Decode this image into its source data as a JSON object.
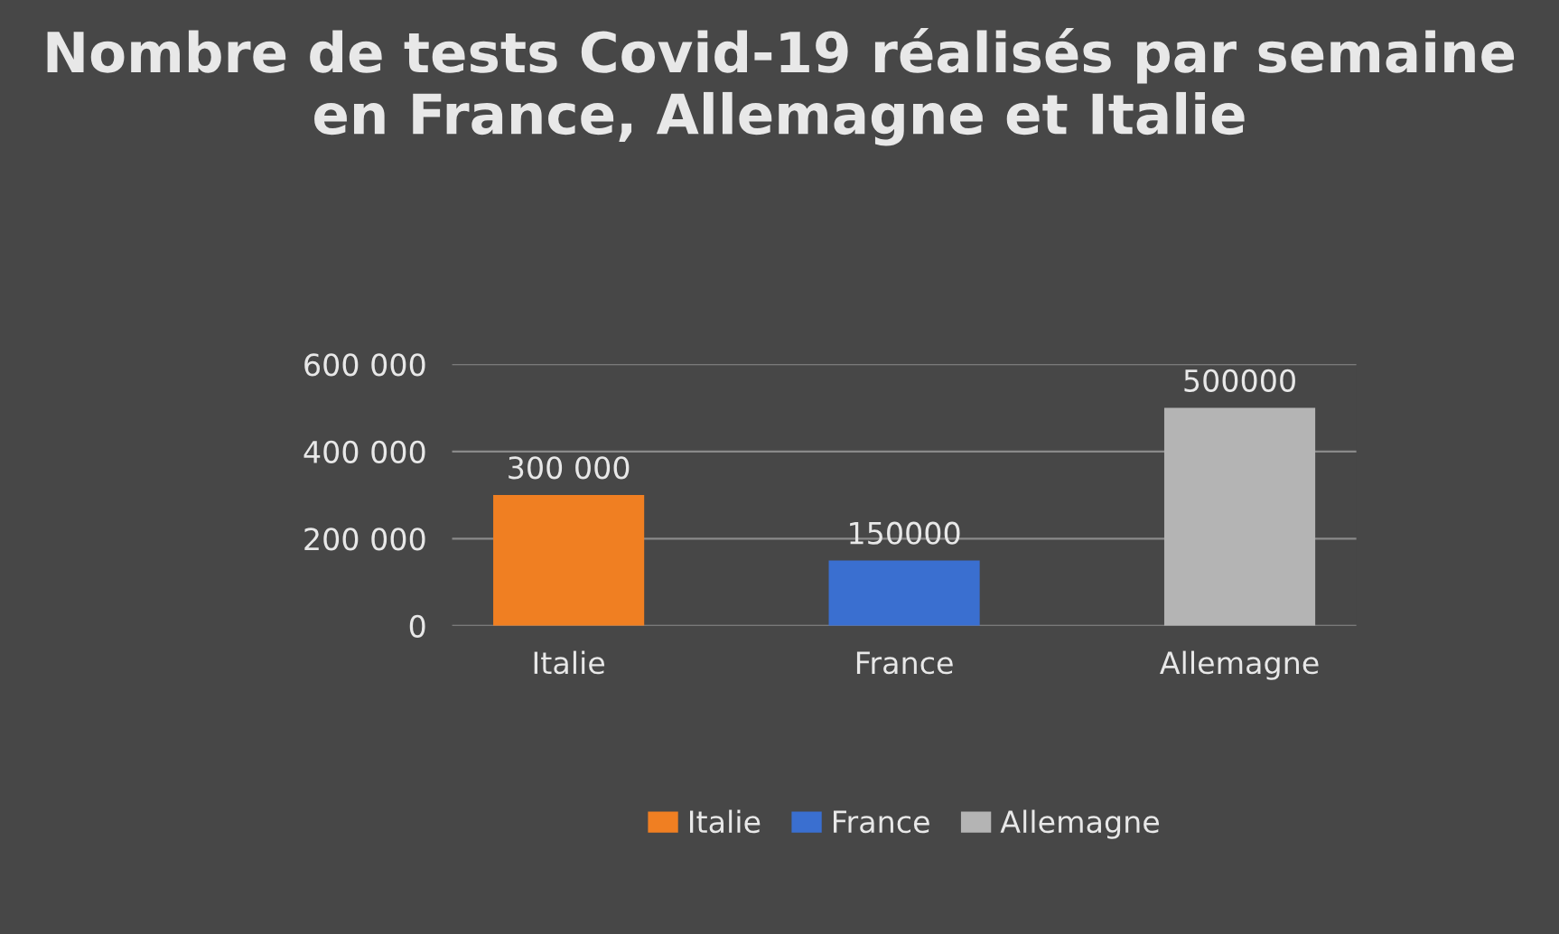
{
  "chart_data": {
    "type": "bar",
    "title": "Nombre de tests Covid-19 réalisés par semaine en France, Allemagne et Italie",
    "categories": [
      "Italie",
      "France",
      "Allemagne"
    ],
    "series": [
      {
        "name": "Italie",
        "color": "#f07f22",
        "values": [
          300000,
          null,
          null
        ],
        "value_labels": [
          "300 000",
          null,
          null
        ]
      },
      {
        "name": "France",
        "color": "#3a6fd0",
        "values": [
          null,
          150000,
          null
        ],
        "value_labels": [
          null,
          "150000",
          null
        ]
      },
      {
        "name": "Allemagne",
        "color": "#b4b4b4",
        "values": [
          null,
          null,
          500000
        ],
        "value_labels": [
          null,
          null,
          "500000"
        ]
      }
    ],
    "ylim": [
      0,
      600000
    ],
    "yticks": [
      0,
      {
        "value": 200000,
        "label": "200 000"
      },
      {
        "value": 400000,
        "label": "400 000"
      },
      {
        "value": 600000,
        "label": "600 000"
      }
    ],
    "grid": "y",
    "legend": "bottom"
  }
}
